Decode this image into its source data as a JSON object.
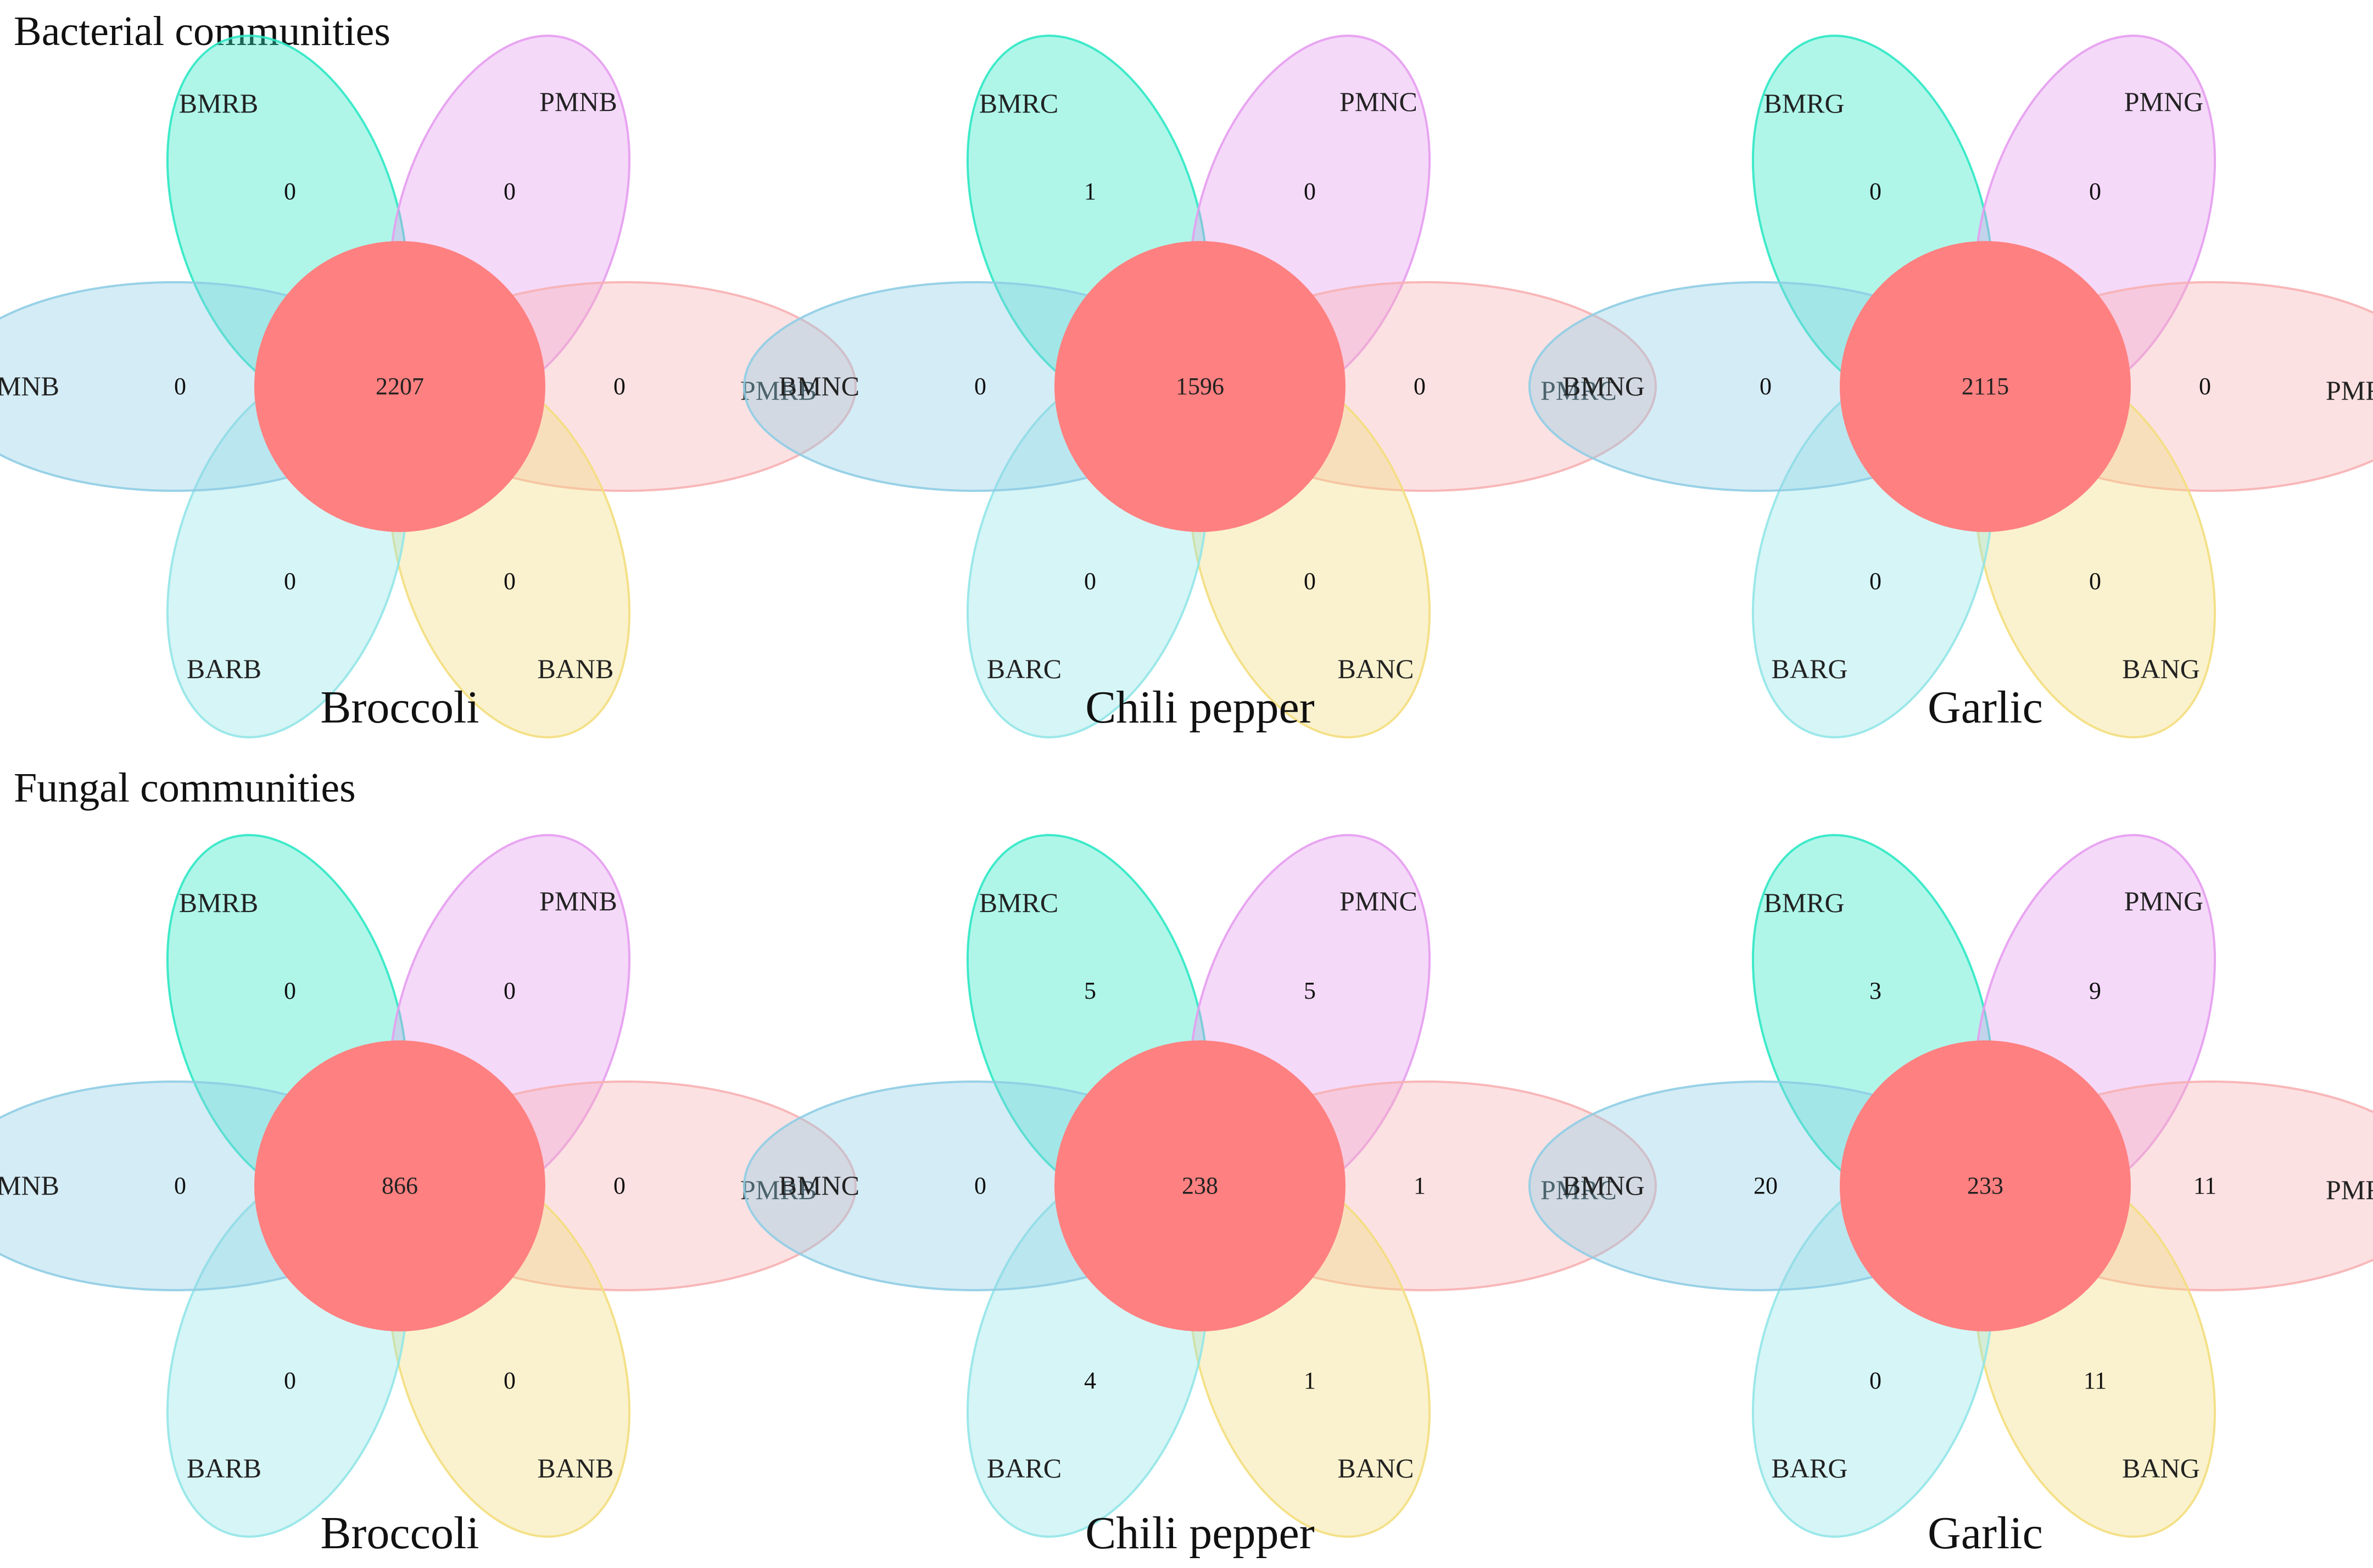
{
  "colors": {
    "top": "#2ee8c4",
    "top_right": "#e59cf0",
    "right": "#f7b0b3",
    "bottom_right": "#f3de7e",
    "bottom_left": "#92e6e8",
    "left": "#8fcde4",
    "core": "#ff8080"
  },
  "sections": [
    {
      "title": "Bacterial communities",
      "panels": [
        {
          "title": "Broccoli",
          "labels": {
            "top": "BMRB",
            "top_right": "PMNB",
            "right": "PMRB",
            "bottom_right": "BANB",
            "bottom_left": "BARB",
            "left": "BMNB"
          },
          "counts": {
            "top": "0",
            "top_right": "0",
            "right": "0",
            "bottom_right": "0",
            "bottom_left": "0",
            "left": "0",
            "core": "2207"
          }
        },
        {
          "title": "Chili pepper",
          "labels": {
            "top": "BMRC",
            "top_right": "PMNC",
            "right": "PMRC",
            "bottom_right": "BANC",
            "bottom_left": "BARC",
            "left": "BMNC"
          },
          "counts": {
            "top": "1",
            "top_right": "0",
            "right": "0",
            "bottom_right": "0",
            "bottom_left": "0",
            "left": "0",
            "core": "1596"
          }
        },
        {
          "title": "Garlic",
          "labels": {
            "top": "BMRG",
            "top_right": "PMNG",
            "right": "PMRG",
            "bottom_right": "BANG",
            "bottom_left": "BARG",
            "left": "BMNG"
          },
          "counts": {
            "top": "0",
            "top_right": "0",
            "right": "0",
            "bottom_right": "0",
            "bottom_left": "0",
            "left": "0",
            "core": "2115"
          }
        }
      ]
    },
    {
      "title": "Fungal communities",
      "panels": [
        {
          "title": "Broccoli",
          "labels": {
            "top": "BMRB",
            "top_right": "PMNB",
            "right": "PMRB",
            "bottom_right": "BANB",
            "bottom_left": "BARB",
            "left": "BMNB"
          },
          "counts": {
            "top": "0",
            "top_right": "0",
            "right": "0",
            "bottom_right": "0",
            "bottom_left": "0",
            "left": "0",
            "core": "866"
          }
        },
        {
          "title": "Chili pepper",
          "labels": {
            "top": "BMRC",
            "top_right": "PMNC",
            "right": "PMRC",
            "bottom_right": "BANC",
            "bottom_left": "BARC",
            "left": "BMNC"
          },
          "counts": {
            "top": "5",
            "top_right": "5",
            "right": "1",
            "bottom_right": "1",
            "bottom_left": "4",
            "left": "0",
            "core": "238"
          }
        },
        {
          "title": "Garlic",
          "labels": {
            "top": "BMRG",
            "top_right": "PMNG",
            "right": "PMRG",
            "bottom_right": "BANG",
            "bottom_left": "BARG",
            "left": "BMNG"
          },
          "counts": {
            "top": "3",
            "top_right": "9",
            "right": "11",
            "bottom_right": "11",
            "bottom_left": "0",
            "left": "20",
            "core": "233"
          }
        }
      ]
    }
  ]
}
